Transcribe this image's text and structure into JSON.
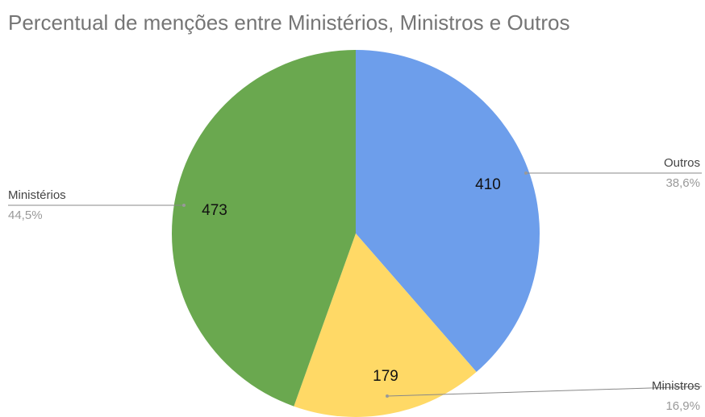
{
  "chart_data": {
    "type": "pie",
    "title": "Percentual de menções entre Ministérios, Ministros e Outros",
    "categories": [
      "Outros",
      "Ministros",
      "Ministérios"
    ],
    "values": [
      410,
      179,
      473
    ],
    "percent_labels": [
      "38,6%",
      "16,9%",
      "44,5%"
    ],
    "colors": [
      "#6d9eeb",
      "#ffd966",
      "#6aa84f"
    ]
  }
}
